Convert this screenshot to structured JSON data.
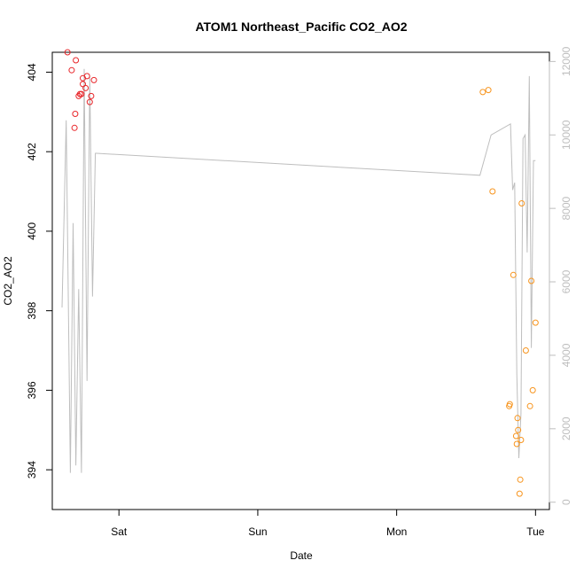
{
  "chart_data": {
    "type": "scatter",
    "title": "ATOM1 Northeast_Pacific CO2_AO2",
    "xlabel": "Date",
    "ylabel": "CO2_AO2",
    "x_domain_days": [
      -0.48,
      3.1
    ],
    "ylim": [
      393,
      404.5
    ],
    "x_ticks": [
      {
        "pos": 0,
        "label": "Sat"
      },
      {
        "pos": 1,
        "label": "Sun"
      },
      {
        "pos": 2,
        "label": "Mon"
      },
      {
        "pos": 3,
        "label": "Tue"
      }
    ],
    "y_ticks": [
      394,
      396,
      398,
      400,
      402,
      404
    ],
    "y2lim": [
      -200,
      12250
    ],
    "y2_ticks": [
      0,
      2000,
      4000,
      6000,
      8000,
      10000,
      12000
    ],
    "colors": {
      "series1": "#e8262a",
      "series2": "#f7941d",
      "altitude": "#bebebe",
      "axis": "#000000",
      "axis_right": "#bebebe"
    },
    "series": [
      {
        "color_key": "series1",
        "points": [
          {
            "x": -0.37,
            "y": 404.5
          },
          {
            "x": -0.34,
            "y": 404.05
          },
          {
            "x": -0.31,
            "y": 404.3
          },
          {
            "x": -0.32,
            "y": 402.6
          },
          {
            "x": -0.315,
            "y": 402.95
          },
          {
            "x": -0.29,
            "y": 403.4
          },
          {
            "x": -0.28,
            "y": 403.45
          },
          {
            "x": -0.27,
            "y": 403.45
          },
          {
            "x": -0.26,
            "y": 403.85
          },
          {
            "x": -0.26,
            "y": 403.7
          },
          {
            "x": -0.24,
            "y": 403.6
          },
          {
            "x": -0.23,
            "y": 403.9
          },
          {
            "x": -0.21,
            "y": 403.25
          },
          {
            "x": -0.2,
            "y": 403.4
          },
          {
            "x": -0.18,
            "y": 403.8
          }
        ]
      },
      {
        "color_key": "series2",
        "points": [
          {
            "x": 2.62,
            "y": 403.5
          },
          {
            "x": 2.66,
            "y": 403.55
          },
          {
            "x": 2.69,
            "y": 401.0
          },
          {
            "x": 2.81,
            "y": 395.6
          },
          {
            "x": 2.815,
            "y": 395.65
          },
          {
            "x": 2.84,
            "y": 398.9
          },
          {
            "x": 2.86,
            "y": 394.85
          },
          {
            "x": 2.865,
            "y": 394.65
          },
          {
            "x": 2.87,
            "y": 395.3
          },
          {
            "x": 2.875,
            "y": 395.0
          },
          {
            "x": 2.885,
            "y": 393.4
          },
          {
            "x": 2.89,
            "y": 393.75
          },
          {
            "x": 2.895,
            "y": 394.75
          },
          {
            "x": 2.9,
            "y": 400.7
          },
          {
            "x": 2.93,
            "y": 397.0
          },
          {
            "x": 2.96,
            "y": 395.6
          },
          {
            "x": 2.97,
            "y": 398.75
          },
          {
            "x": 2.98,
            "y": 396.0
          },
          {
            "x": 3.0,
            "y": 397.7
          }
        ]
      }
    ],
    "altitude_line": {
      "x": [
        -0.41,
        -0.38,
        -0.35,
        -0.33,
        -0.31,
        -0.29,
        -0.27,
        -0.25,
        -0.23,
        -0.21,
        -0.19,
        -0.17,
        -0.16,
        2.6,
        2.68,
        2.82,
        2.835,
        2.85,
        2.865,
        2.88,
        2.895,
        2.91,
        2.925,
        2.94,
        2.955,
        2.97,
        2.985,
        3.0
      ],
      "y": [
        5300,
        10400,
        800,
        7600,
        1000,
        5800,
        800,
        11800,
        3300,
        11600,
        5600,
        9500,
        9500,
        8900,
        10000,
        10300,
        8500,
        8700,
        3500,
        1200,
        2400,
        9900,
        10000,
        6800,
        11600,
        4200,
        9300,
        9300
      ]
    }
  }
}
